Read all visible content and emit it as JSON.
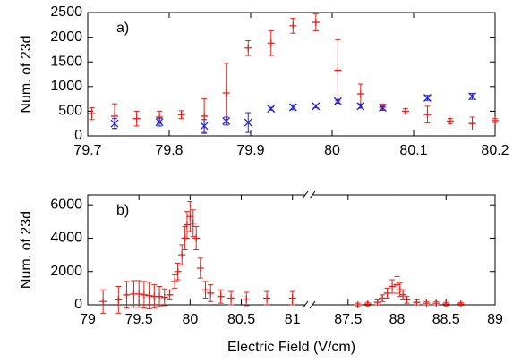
{
  "chart_data": [
    {
      "type": "errorbar",
      "panel_label": "a)",
      "ylabel": "Num. of 23d",
      "xlim": [
        79.7,
        80.2
      ],
      "xticks": [
        79.7,
        79.8,
        79.9,
        80,
        80.1,
        80.2
      ],
      "ylim": [
        0,
        2500
      ],
      "yticks": [
        0,
        500,
        1000,
        1500,
        2000,
        2500
      ],
      "series": [
        {
          "marker": "plus",
          "color": "#e8201a",
          "x": [
            79.705,
            79.733,
            79.76,
            79.788,
            79.815,
            79.843,
            79.87,
            79.897,
            79.925,
            79.952,
            79.98,
            80.007,
            80.035,
            80.062,
            80.09,
            80.117,
            80.145,
            80.172,
            80.2
          ],
          "values": [
            450,
            400,
            350,
            380,
            430,
            400,
            870,
            1780,
            1880,
            2230,
            2300,
            1330,
            850,
            580,
            500,
            430,
            300,
            250,
            310
          ],
          "errors": [
            120,
            250,
            150,
            120,
            80,
            350,
            600,
            150,
            250,
            150,
            170,
            620,
            200,
            60,
            50,
            170,
            50,
            130,
            40
          ]
        },
        {
          "marker": "cross",
          "color": "#2323d8",
          "x": [
            79.733,
            79.788,
            79.843,
            79.87,
            79.897,
            79.925,
            79.952,
            79.98,
            80.007,
            80.035,
            80.062,
            80.117,
            80.172
          ],
          "values": [
            250,
            280,
            200,
            300,
            270,
            550,
            580,
            600,
            700,
            600,
            570,
            770,
            800
          ],
          "errors": [
            100,
            80,
            130,
            80,
            200,
            30,
            50,
            30,
            40,
            40,
            50,
            50,
            60
          ]
        }
      ]
    },
    {
      "type": "errorbar",
      "panel_label": "b)",
      "ylabel": "Num. of 23d",
      "xlabel": "Electric Field (V/cm)",
      "x_segments": [
        {
          "xlim": [
            79,
            81.16
          ],
          "xticks": [
            79,
            79.5,
            80,
            80.5,
            81
          ]
        },
        {
          "xlim": [
            87.1,
            89
          ],
          "xticks": [
            87.5,
            88,
            88.5,
            89
          ]
        }
      ],
      "ylim": [
        0,
        6600
      ],
      "yticks": [
        0,
        2000,
        4000,
        6000
      ],
      "series": [
        {
          "marker": "plus",
          "color": "#e8201a",
          "x": [
            79.15,
            79.3,
            79.38,
            79.45,
            79.5,
            79.55,
            79.6,
            79.65,
            79.7,
            79.75,
            79.8,
            79.85,
            79.88,
            79.92,
            79.95,
            79.97,
            80.0,
            80.03,
            80.06,
            80.1,
            80.15,
            80.2,
            80.3,
            80.4,
            80.55,
            80.75,
            81.0,
            87.6,
            87.7,
            87.8,
            87.85,
            87.9,
            87.95,
            88.0,
            88.03,
            88.06,
            88.1,
            88.2,
            88.3,
            88.4,
            88.5,
            88.65
          ],
          "values": [
            200,
            300,
            600,
            650,
            650,
            600,
            550,
            500,
            500,
            450,
            600,
            1400,
            2000,
            3000,
            4000,
            4800,
            5300,
            4900,
            4000,
            2200,
            900,
            700,
            500,
            400,
            350,
            400,
            400,
            0,
            50,
            150,
            400,
            700,
            1100,
            1200,
            900,
            600,
            300,
            150,
            100,
            100,
            50,
            50
          ],
          "errors": [
            700,
            800,
            800,
            800,
            800,
            800,
            800,
            700,
            600,
            500,
            300,
            400,
            500,
            600,
            700,
            800,
            900,
            800,
            700,
            600,
            500,
            500,
            400,
            400,
            400,
            400,
            400,
            100,
            100,
            150,
            200,
            300,
            400,
            500,
            400,
            300,
            200,
            150,
            100,
            100,
            100,
            80
          ]
        }
      ]
    }
  ]
}
